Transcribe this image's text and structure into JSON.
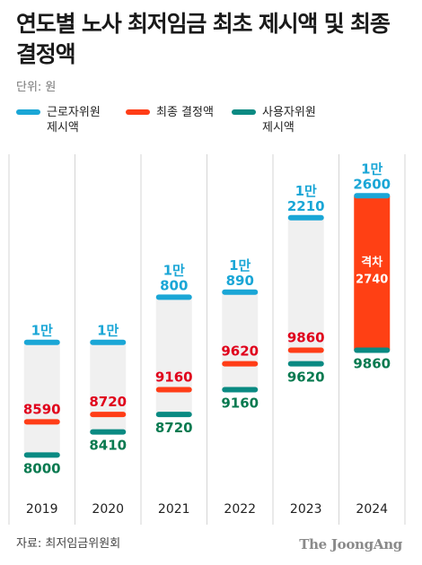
{
  "header": {
    "title": "연도별 노사 최저임금 최초 제시액 및 최종 결정액",
    "unit": "단위: 원"
  },
  "legend": [
    {
      "label": "근로자위원\n제시액",
      "color": "#1aa6d6"
    },
    {
      "label": "최종 결정액",
      "color": "#ff3d17"
    },
    {
      "label": "사용자위원\n제시액",
      "color": "#0a8a82"
    }
  ],
  "chart_data": {
    "type": "range-bar",
    "categories": [
      "2019",
      "2020",
      "2021",
      "2022",
      "2023",
      "2024"
    ],
    "series": [
      {
        "name": "근로자위원 제시액",
        "values": [
          10000,
          10000,
          10800,
          10890,
          12210,
          12600
        ],
        "labels": [
          [
            "1만",
            ""
          ],
          [
            "1만",
            ""
          ],
          [
            "1만",
            "800"
          ],
          [
            "1만",
            "890"
          ],
          [
            "1만",
            "2210"
          ],
          [
            "1만",
            "2600"
          ]
        ]
      },
      {
        "name": "최종 결정액",
        "values": [
          8590,
          8720,
          9160,
          9620,
          9860,
          null
        ],
        "labels": [
          [
            "8590"
          ],
          [
            "8720"
          ],
          [
            "9160"
          ],
          [
            "9620"
          ],
          [
            "9860"
          ],
          null
        ]
      },
      {
        "name": "사용자위원 제시액",
        "values": [
          8000,
          8410,
          8720,
          9160,
          9620,
          9860
        ],
        "labels": [
          [
            "8000"
          ],
          [
            "8410"
          ],
          [
            "8720"
          ],
          [
            "9160"
          ],
          [
            "9620"
          ],
          [
            "9860"
          ]
        ]
      }
    ],
    "annotations": [
      {
        "category": "2024",
        "text": [
          "격차",
          "2740"
        ]
      }
    ],
    "colors": {
      "worker": "#1aa6d6",
      "final": "#ff3d17",
      "employer": "#0a8a82",
      "final_text": "#e0001b",
      "employer_text": "#087a50",
      "range_fill": "#f0f0f0",
      "gap_fill": "#ff4014"
    },
    "ylim": [
      7800,
      12700
    ]
  },
  "footer": {
    "source": "자료: 최저임금위원회",
    "brand": "The JoongAng"
  }
}
